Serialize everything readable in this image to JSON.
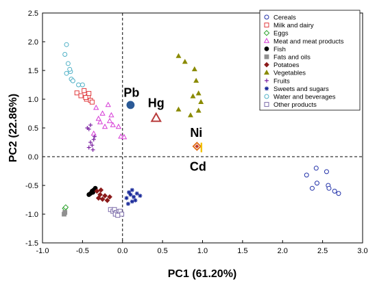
{
  "chart_data": {
    "type": "scatter",
    "xlabel": "PC1 (61.20%)",
    "ylabel": "PC2 (22.86%)",
    "xlim": [
      -1.0,
      3.0
    ],
    "ylim": [
      -1.5,
      2.5
    ],
    "x_ticks": [
      "-1.0",
      "-0.5",
      "0.0",
      "0.5",
      "1.0",
      "1.5",
      "2.0",
      "2.5",
      "3.0"
    ],
    "y_ticks": [
      "-1.5",
      "-1.0",
      "-0.5",
      "0.0",
      "0.5",
      "1.0",
      "1.5",
      "2.0",
      "2.5"
    ],
    "x_tick_values": [
      -1.0,
      -0.5,
      0.0,
      0.5,
      1.0,
      1.5,
      2.0,
      2.5,
      3.0
    ],
    "y_tick_values": [
      -1.5,
      -1.0,
      -0.5,
      0.0,
      0.5,
      1.0,
      1.5,
      2.0,
      2.5
    ],
    "reference_lines": [
      {
        "axis": "x",
        "value": 0
      },
      {
        "axis": "y",
        "value": 0
      }
    ],
    "legend_position": "top-right",
    "series": [
      {
        "name": "Cereals",
        "marker": "circle-open",
        "color": "#1f2fa8",
        "points": [
          [
            2.3,
            -0.32
          ],
          [
            2.37,
            -0.55
          ],
          [
            2.42,
            -0.2
          ],
          [
            2.43,
            -0.46
          ],
          [
            2.55,
            -0.26
          ],
          [
            2.57,
            -0.5
          ],
          [
            2.58,
            -0.55
          ],
          [
            2.65,
            -0.6
          ],
          [
            2.7,
            -0.64
          ]
        ]
      },
      {
        "name": "Milk and dairy",
        "marker": "square-open",
        "color": "#e0393c",
        "points": [
          [
            -0.57,
            1.11
          ],
          [
            -0.48,
            1.15
          ],
          [
            -0.45,
            1.0
          ],
          [
            -0.43,
            1.05
          ],
          [
            -0.42,
            1.1
          ],
          [
            -0.4,
            0.98
          ],
          [
            -0.38,
            0.95
          ],
          [
            -0.52,
            1.06
          ],
          [
            -0.46,
            1.03
          ]
        ]
      },
      {
        "name": "Eggs",
        "marker": "diamond-open",
        "color": "#2aa02a",
        "points": [
          [
            -0.72,
            -0.9
          ],
          [
            -0.71,
            -0.88
          ]
        ]
      },
      {
        "name": "Meat and meat products",
        "marker": "triangle-open",
        "color": "#d63ad6",
        "points": [
          [
            -0.33,
            0.85
          ],
          [
            -0.28,
            0.6
          ],
          [
            -0.25,
            0.75
          ],
          [
            -0.22,
            0.52
          ],
          [
            -0.18,
            0.9
          ],
          [
            -0.16,
            0.62
          ],
          [
            -0.14,
            0.72
          ],
          [
            -0.12,
            0.55
          ],
          [
            -0.05,
            0.52
          ],
          [
            -0.02,
            0.35
          ],
          [
            0.02,
            0.34
          ],
          [
            -0.36,
            0.4
          ],
          [
            -0.3,
            0.66
          ]
        ]
      },
      {
        "name": "Fish",
        "marker": "circle-filled",
        "color": "#000000",
        "points": [
          [
            -0.42,
            -0.66
          ],
          [
            -0.4,
            -0.64
          ],
          [
            -0.38,
            -0.6
          ],
          [
            -0.36,
            -0.58
          ],
          [
            -0.34,
            -0.55
          ],
          [
            -0.37,
            -0.62
          ]
        ]
      },
      {
        "name": "Fats and oils",
        "marker": "square-filled",
        "color": "#909090",
        "points": [
          [
            -0.73,
            -1.0
          ],
          [
            -0.72,
            -0.97
          ]
        ]
      },
      {
        "name": "Potatoes",
        "marker": "diamond-filled",
        "color": "#8b1a1a",
        "points": [
          [
            -0.32,
            -0.6
          ],
          [
            -0.3,
            -0.72
          ],
          [
            -0.27,
            -0.58
          ],
          [
            -0.25,
            -0.74
          ],
          [
            -0.22,
            -0.68
          ],
          [
            -0.19,
            -0.76
          ],
          [
            -0.16,
            -0.7
          ],
          [
            -0.28,
            -0.66
          ]
        ]
      },
      {
        "name": "Vegetables",
        "marker": "triangle-filled",
        "color": "#8a8a00",
        "points": [
          [
            0.7,
            1.75
          ],
          [
            0.78,
            1.65
          ],
          [
            0.7,
            0.82
          ],
          [
            0.88,
            1.05
          ],
          [
            0.9,
            1.52
          ],
          [
            0.92,
            1.32
          ],
          [
            0.95,
            1.1
          ],
          [
            0.95,
            0.8
          ],
          [
            0.98,
            0.95
          ],
          [
            0.85,
            0.72
          ]
        ]
      },
      {
        "name": "Fruits",
        "marker": "plus",
        "color": "#7a1fa0",
        "points": [
          [
            -0.44,
            0.5
          ],
          [
            -0.42,
            0.48
          ],
          [
            -0.4,
            0.55
          ],
          [
            -0.4,
            0.25
          ],
          [
            -0.38,
            0.2
          ],
          [
            -0.36,
            0.3
          ],
          [
            -0.35,
            0.35
          ],
          [
            -0.42,
            0.16
          ],
          [
            -0.37,
            0.12
          ]
        ]
      },
      {
        "name": "Sweets and sugars",
        "marker": "star",
        "color": "#1a2a9a",
        "points": [
          [
            0.05,
            -0.72
          ],
          [
            0.08,
            -0.62
          ],
          [
            0.1,
            -0.66
          ],
          [
            0.12,
            -0.58
          ],
          [
            0.14,
            -0.7
          ],
          [
            0.16,
            -0.76
          ],
          [
            0.18,
            -0.64
          ],
          [
            0.22,
            -0.68
          ],
          [
            0.07,
            -0.82
          ],
          [
            0.12,
            -0.78
          ]
        ]
      },
      {
        "name": "Water and beverages",
        "marker": "circle-open",
        "color": "#4fb0c6",
        "points": [
          [
            -0.7,
            1.95
          ],
          [
            -0.72,
            1.78
          ],
          [
            -0.68,
            1.62
          ],
          [
            -0.65,
            1.48
          ],
          [
            -0.7,
            1.45
          ],
          [
            -0.64,
            1.35
          ],
          [
            -0.62,
            1.32
          ],
          [
            -0.55,
            1.25
          ],
          [
            -0.5,
            1.25
          ],
          [
            -0.66,
            1.52
          ]
        ]
      },
      {
        "name": "Other products",
        "marker": "square-open",
        "color": "#7a6aa8",
        "points": [
          [
            -0.15,
            -0.92
          ],
          [
            -0.12,
            -0.95
          ],
          [
            -0.1,
            -0.92
          ],
          [
            -0.08,
            -0.97
          ],
          [
            -0.05,
            -0.96
          ],
          [
            -0.03,
            -0.95
          ],
          [
            -0.01,
            -1.0
          ],
          [
            -0.09,
            -1.0
          ],
          [
            -0.06,
            -1.02
          ]
        ]
      }
    ],
    "loadings": [
      {
        "label": "Pb",
        "x": 0.1,
        "y": 0.9,
        "marker": "circle-filled",
        "color": "#2b5a97",
        "label_dx": -10,
        "label_dy": -12
      },
      {
        "label": "Hg",
        "x": 0.42,
        "y": 0.67,
        "marker": "triangle-open",
        "color": "#b83b3b",
        "label_dx": -12,
        "label_dy": -16
      },
      {
        "label": "Ni",
        "x": 0.93,
        "y": 0.18,
        "marker": "diamond-open",
        "color": "#e06a10",
        "label_dx": -10,
        "label_dy": -14
      },
      {
        "label": "Cd",
        "x": 0.96,
        "y": 0.16,
        "marker": "bar",
        "color": "#f2c100",
        "label_dx": -14,
        "label_dy": 34
      }
    ]
  }
}
